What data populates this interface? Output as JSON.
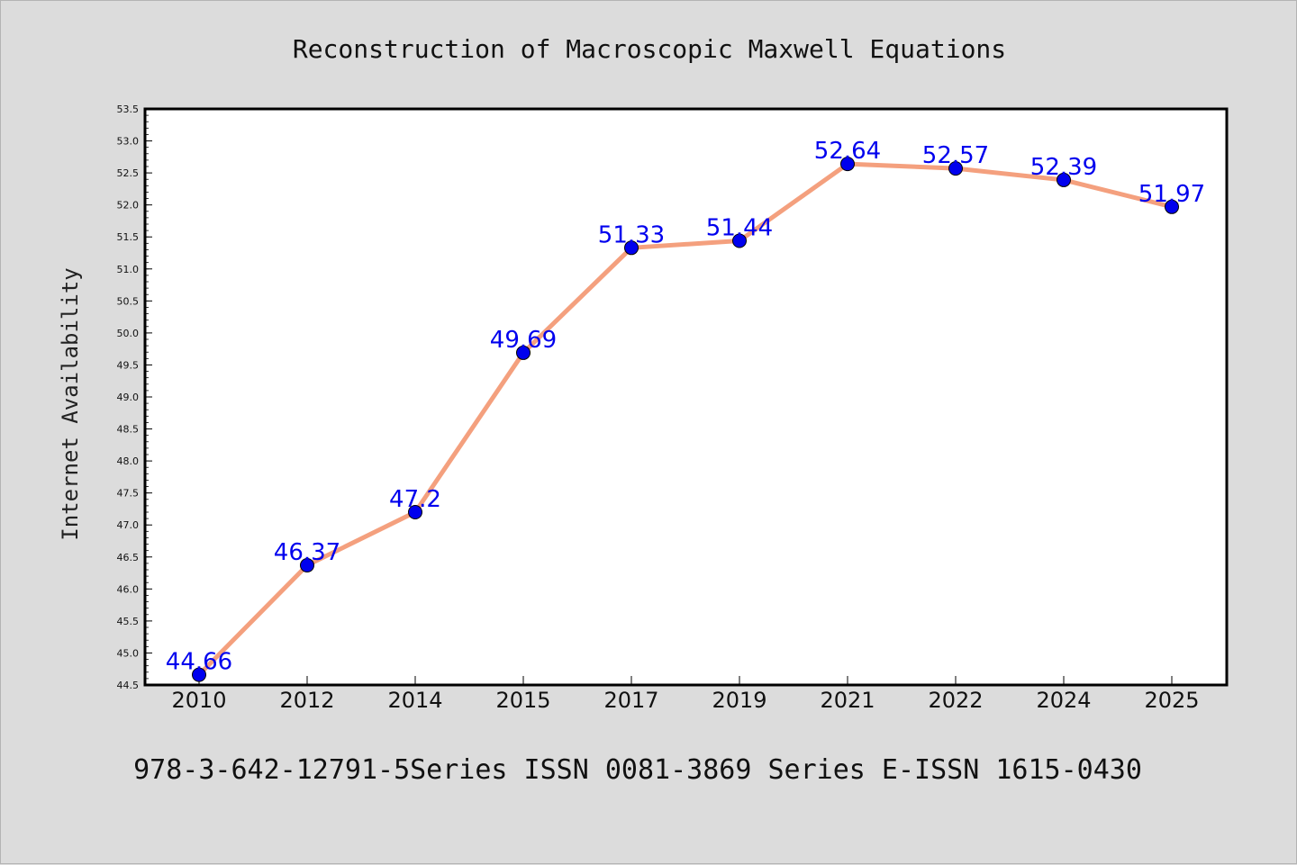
{
  "chart_data": {
    "type": "line",
    "title": "Reconstruction of Macroscopic Maxwell Equations",
    "xlabel": "",
    "ylabel": "Internet Availability",
    "categories": [
      "2010",
      "2012",
      "2014",
      "2015",
      "2017",
      "2019",
      "2021",
      "2022",
      "2024",
      "2025"
    ],
    "series": [
      {
        "values": [
          44.66,
          46.37,
          47.2,
          49.69,
          51.33,
          51.44,
          52.64,
          52.57,
          52.39,
          51.97
        ],
        "data_labels": [
          "44.66",
          "46.37",
          "47.2",
          "49.69",
          "51.33",
          "51.44",
          "52.64",
          "52.57",
          "52.39",
          "51.97"
        ],
        "line_color": "#f4a07e",
        "marker_color": "#0000ee",
        "label_color": "#0000ee"
      }
    ],
    "ylim": [
      44.5,
      53.5
    ],
    "yticks": [
      "44.5",
      "45.0",
      "45.5",
      "46.0",
      "46.5",
      "47.0",
      "47.5",
      "48.0",
      "48.5",
      "49.0",
      "49.5",
      "50.0",
      "50.5",
      "51.0",
      "51.5",
      "52.0",
      "52.5",
      "53.0",
      "53.5"
    ],
    "grid": false,
    "legend": "none"
  },
  "footer": "978-3-642-12791-5Series ISSN 0081-3869 Series E-ISSN 1615-0430",
  "colors": {
    "background": "#dcdcdc",
    "plot_background": "#ffffff",
    "axis": "#000000"
  }
}
